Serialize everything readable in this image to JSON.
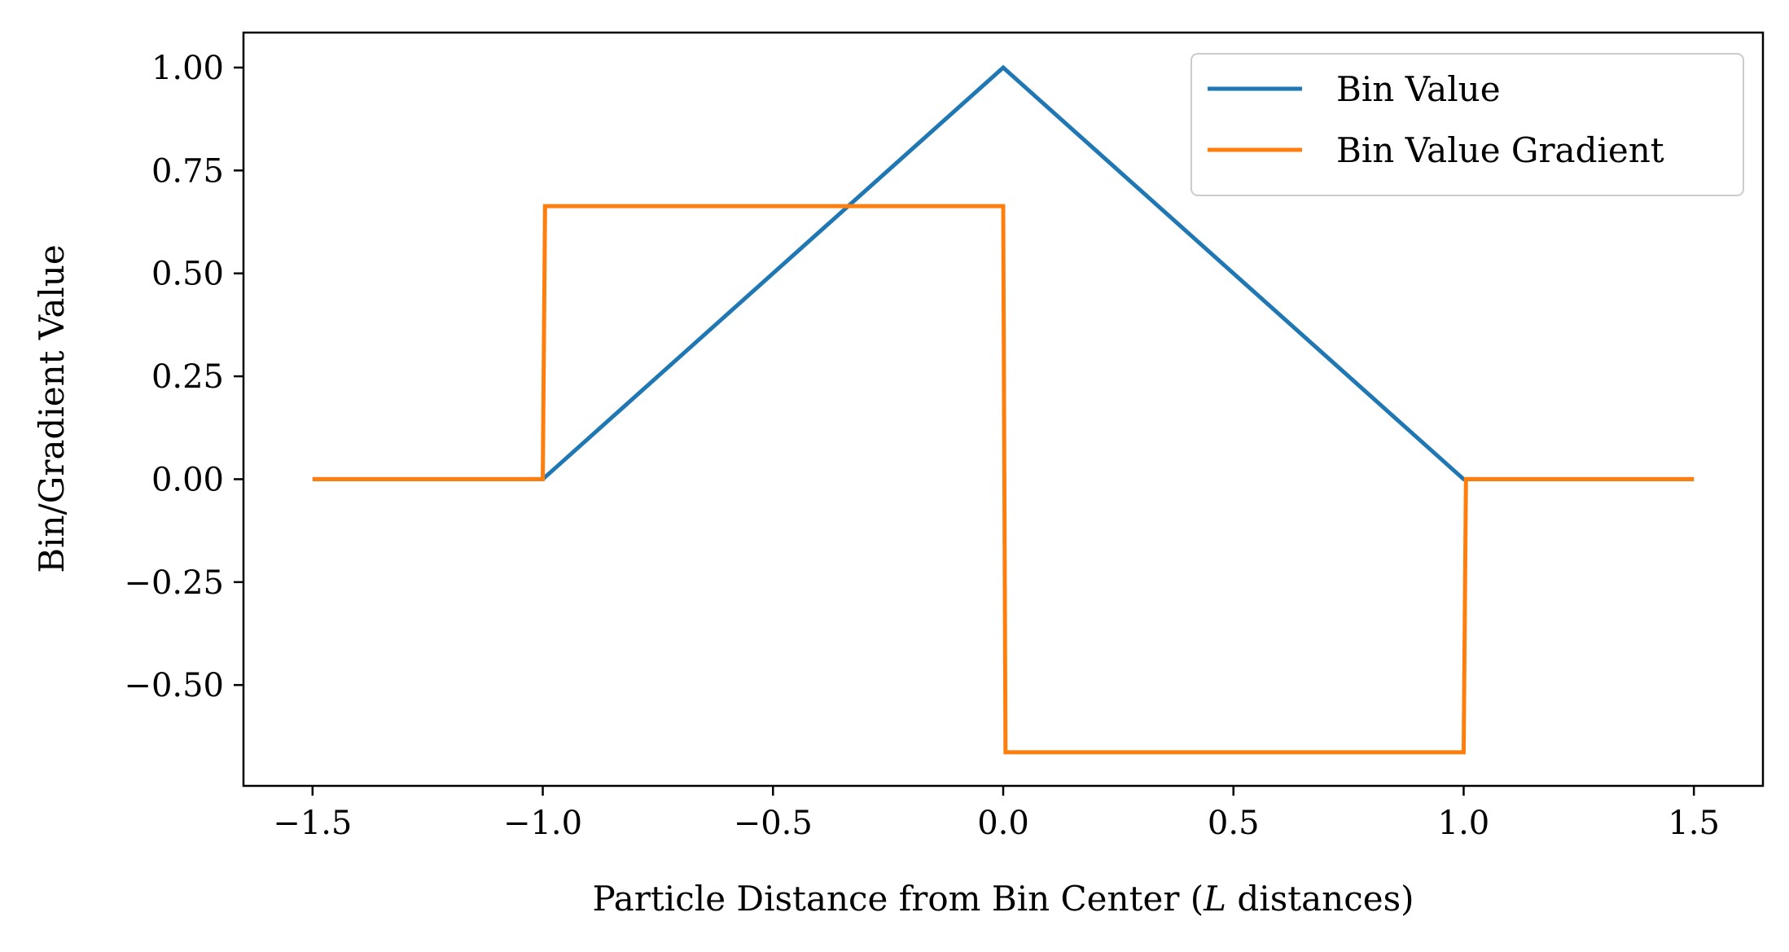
{
  "chart_data": {
    "type": "line",
    "xlabel_parts": [
      "Particle Distance from Bin Center (",
      "L",
      " distances)"
    ],
    "ylabel": "Bin/Gradient Value",
    "xlim": [
      -1.65,
      1.65
    ],
    "ylim": [
      -0.745,
      1.085
    ],
    "x_ticks": [
      -1.5,
      -1.0,
      -0.5,
      0.0,
      0.5,
      1.0,
      1.5
    ],
    "x_tick_labels": [
      "−1.5",
      "−1.0",
      "−0.5",
      "0.0",
      "0.5",
      "1.0",
      "1.5"
    ],
    "y_ticks": [
      1.0,
      0.75,
      0.5,
      0.25,
      0.0,
      -0.25,
      -0.5
    ],
    "y_tick_labels": [
      "1.00",
      "0.75",
      "0.50",
      "0.25",
      "0.00",
      "−0.25",
      "−0.50"
    ],
    "grid": false,
    "legend_position": "top-right",
    "series": [
      {
        "name": "Bin Value",
        "color": "#1f77b4",
        "x": [
          -1.5,
          -1.0,
          0.0,
          1.0,
          1.5
        ],
        "y": [
          0.0,
          0.0,
          1.0,
          0.0,
          0.0
        ]
      },
      {
        "name": "Bin Value Gradient",
        "color": "#ff7f0e",
        "x": [
          -1.5,
          -1.0,
          -0.995,
          0.0,
          0.005,
          1.0,
          1.005,
          1.5
        ],
        "y": [
          0.0,
          0.0,
          0.6633,
          0.6633,
          -0.6633,
          -0.6633,
          0.0,
          0.0
        ]
      }
    ]
  }
}
